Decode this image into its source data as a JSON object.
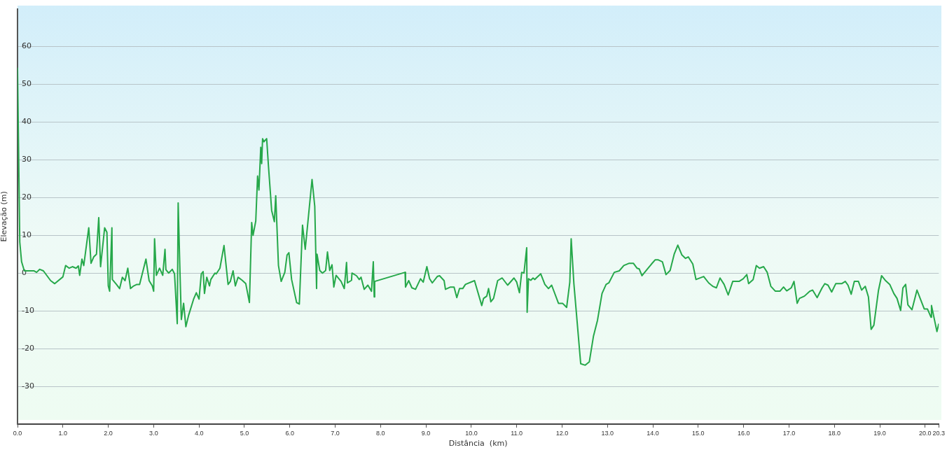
{
  "chart_data": {
    "type": "line",
    "xlabel": "Distância  (km)",
    "ylabel": "Elevação (m)",
    "color": "#26a84a",
    "marker": "none",
    "grid": "y",
    "xlim": [
      0,
      20.3
    ],
    "ylim": [
      -40,
      70
    ],
    "xticks": [
      {
        "value": 0,
        "label": "0.0"
      },
      {
        "value": 1,
        "label": "1.0"
      },
      {
        "value": 2,
        "label": "2.0"
      },
      {
        "value": 3,
        "label": "3.0"
      },
      {
        "value": 4,
        "label": "4.0"
      },
      {
        "value": 5,
        "label": "5.0"
      },
      {
        "value": 6,
        "label": "6.0"
      },
      {
        "value": 7,
        "label": "7.0"
      },
      {
        "value": 8,
        "label": "8.0"
      },
      {
        "value": 9,
        "label": "9.0"
      },
      {
        "value": 10,
        "label": "10.0"
      },
      {
        "value": 11,
        "label": "11.0"
      },
      {
        "value": 12,
        "label": "12.0"
      },
      {
        "value": 13,
        "label": "13.0"
      },
      {
        "value": 14,
        "label": "14.0"
      },
      {
        "value": 15,
        "label": "15.0"
      },
      {
        "value": 16,
        "label": "16.0"
      },
      {
        "value": 17,
        "label": "17.0"
      },
      {
        "value": 18,
        "label": "18.0"
      },
      {
        "value": 19,
        "label": "19.0"
      },
      {
        "value": 20,
        "label": "20.0"
      },
      {
        "value": 20.3,
        "label": "20.3"
      }
    ],
    "yticks": [
      -30,
      -20,
      -10,
      0,
      10,
      20,
      30,
      40,
      50,
      60
    ],
    "x": [
      0,
      0.05,
      0.09,
      0.15,
      0.36,
      0.42,
      0.49,
      0.57,
      0.73,
      0.82,
      1.0,
      1.06,
      1.14,
      1.21,
      1.29,
      1.34,
      1.37,
      1.42,
      1.46,
      1.57,
      1.62,
      1.68,
      1.74,
      1.79,
      1.83,
      1.92,
      1.97,
      2.0,
      2.03,
      2.08,
      2.09,
      2.18,
      2.25,
      2.31,
      2.37,
      2.43,
      2.49,
      2.56,
      2.63,
      2.69,
      2.83,
      2.9,
      2.97,
      3.0,
      3.02,
      3.06,
      3.13,
      3.2,
      3.25,
      3.27,
      3.33,
      3.41,
      3.46,
      3.52,
      3.54,
      3.58,
      3.61,
      3.66,
      3.71,
      3.77,
      3.88,
      3.94,
      4.0,
      4.05,
      4.09,
      4.12,
      4.17,
      4.23,
      4.26,
      4.35,
      4.38,
      4.46,
      4.55,
      4.64,
      4.69,
      4.75,
      4.8,
      4.86,
      4.95,
      5.03,
      5.11,
      5.16,
      5.19,
      5.25,
      5.29,
      5.32,
      5.36,
      5.38,
      5.4,
      5.43,
      5.49,
      5.53,
      5.6,
      5.66,
      5.69,
      5.75,
      5.81,
      5.89,
      5.94,
      5.98,
      6.04,
      6.15,
      6.21,
      6.28,
      6.34,
      6.49,
      6.55,
      6.59,
      6.6,
      6.66,
      6.72,
      6.79,
      6.83,
      6.88,
      6.93,
      6.97,
      7.02,
      7.13,
      7.2,
      7.25,
      7.27,
      7.36,
      7.37,
      7.47,
      7.53,
      7.57,
      7.64,
      7.72,
      7.8,
      7.84,
      7.86,
      7.87,
      8.54,
      8.55,
      8.62,
      8.69,
      8.77,
      8.88,
      8.94,
      9.02,
      9.08,
      9.14,
      9.25,
      9.3,
      9.4,
      9.43,
      9.54,
      9.62,
      9.68,
      9.74,
      9.81,
      9.87,
      10.07,
      10.23,
      10.27,
      10.34,
      10.38,
      10.43,
      10.49,
      10.58,
      10.68,
      10.8,
      10.94,
      11.0,
      11.06,
      11.11,
      11.16,
      11.22,
      11.23,
      11.26,
      11.31,
      11.36,
      11.4,
      11.43,
      11.53,
      11.62,
      11.7,
      11.77,
      11.92,
      12.01,
      12.1,
      12.17,
      12.2,
      12.26,
      12.41,
      12.51,
      12.6,
      12.69,
      12.78,
      12.88,
      12.97,
      13.03,
      13.15,
      13.26,
      13.36,
      13.48,
      13.57,
      13.65,
      13.7,
      13.76,
      13.88,
      13.97,
      14.05,
      14.12,
      14.21,
      14.29,
      14.38,
      14.47,
      14.55,
      14.64,
      14.72,
      14.78,
      14.88,
      14.95,
      15.12,
      15.23,
      15.32,
      15.4,
      15.48,
      15.57,
      15.66,
      15.76,
      15.9,
      15.99,
      16.07,
      16.11,
      16.21,
      16.28,
      16.35,
      16.44,
      16.52,
      16.6,
      16.7,
      16.8,
      16.88,
      16.95,
      17.05,
      17.11,
      17.18,
      17.23,
      17.34,
      17.46,
      17.52,
      17.62,
      17.73,
      17.79,
      17.86,
      17.94,
      18.03,
      18.16,
      18.24,
      18.3,
      18.37,
      18.44,
      18.53,
      18.6,
      18.68,
      18.75,
      18.81,
      18.87,
      18.97,
      19.04,
      19.12,
      19.22,
      19.31,
      19.38,
      19.46,
      19.51,
      19.57,
      19.62,
      19.71,
      19.82,
      19.89,
      19.98,
      20.05,
      20.13,
      20.14,
      20.26,
      20.3
    ],
    "values": [
      54.4,
      8.2,
      3,
      0.6,
      0.6,
      0.2,
      1,
      0.6,
      -2,
      -2.8,
      -1,
      2,
      1.3,
      1.7,
      1.3,
      1.9,
      -0.6,
      3.7,
      2,
      12,
      2.6,
      4.3,
      5,
      14.7,
      1.7,
      12,
      10.8,
      -3.4,
      -4.8,
      12,
      -1.7,
      -3,
      -4.1,
      -1.1,
      -2,
      1.3,
      -4.1,
      -3.4,
      -3,
      -3,
      3.7,
      -2,
      -3.4,
      -4.8,
      9.1,
      -0.6,
      1.3,
      -0.6,
      6.3,
      0.9,
      0,
      1,
      -0.2,
      -13.4,
      18.6,
      0.2,
      -12.3,
      -8,
      -14.2,
      -11.2,
      -6.9,
      -5.2,
      -6.9,
      -0.2,
      0.4,
      -5.4,
      -1.1,
      -3.4,
      -1.7,
      0,
      -0.2,
      1.3,
      7.3,
      -3,
      -2.2,
      0.6,
      -3.4,
      -1.1,
      -1.9,
      -2.8,
      -7.8,
      13.4,
      10,
      13.8,
      25.7,
      22,
      33.3,
      29,
      35.6,
      34.8,
      35.6,
      28.3,
      16.6,
      13.6,
      20.5,
      2,
      -2.2,
      0.2,
      4.8,
      5.4,
      -1.7,
      -7.8,
      -8.2,
      12.7,
      6.3,
      24.8,
      17.7,
      -4.1,
      5,
      0.7,
      0,
      0.7,
      5.6,
      0.7,
      2.2,
      -3.7,
      -0.6,
      -2.2,
      -4.1,
      2.8,
      -2.6,
      -1.9,
      0,
      -0.7,
      -1.7,
      -1.1,
      -4.3,
      -3.2,
      -4.8,
      3,
      -6.3,
      -2.2,
      0.2,
      -3.7,
      -2,
      -3.9,
      -4.3,
      -1.5,
      -2.4,
      1.7,
      -1.5,
      -2.6,
      -0.9,
      -0.7,
      -2,
      -4.3,
      -3.7,
      -3.7,
      -6.5,
      -4.1,
      -4.1,
      -3,
      -2,
      -8.6,
      -6.7,
      -6.1,
      -4.1,
      -7.6,
      -6.7,
      -2,
      -1.3,
      -3.2,
      -1.3,
      -2.4,
      -5.2,
      0.2,
      0,
      6.7,
      -10.4,
      -1.5,
      -1.9,
      -1.3,
      -1.7,
      -1.3,
      -0.2,
      -3,
      -4.1,
      -3.2,
      -8,
      -8,
      -9.1,
      -2.4,
      9.1,
      -2.8,
      -24,
      -24.4,
      -23.5,
      -16.8,
      -12.5,
      -5.4,
      -3,
      -2.6,
      0.2,
      0.6,
      2,
      2.6,
      2.6,
      1.3,
      1.1,
      -0.7,
      1.1,
      2.4,
      3.5,
      3.5,
      3,
      -0.4,
      0.7,
      5,
      7.4,
      4.8,
      3.9,
      4.3,
      2.4,
      -1.7,
      -0.9,
      -2.6,
      -3.5,
      -3.9,
      -1.3,
      -3,
      -5.8,
      -2.2,
      -2.2,
      -1.5,
      -0.4,
      -2.8,
      -1.7,
      2,
      1.3,
      1.7,
      0.2,
      -3.5,
      -4.8,
      -4.8,
      -3.7,
      -4.7,
      -3.9,
      -2.2,
      -8,
      -6.7,
      -6.1,
      -4.8,
      -4.5,
      -6.5,
      -3.9,
      -2.8,
      -3.2,
      -5,
      -2.8,
      -2.8,
      -2.2,
      -3.2,
      -5.6,
      -2.2,
      -2.2,
      -4.5,
      -3.5,
      -6.3,
      -14.9,
      -13.8,
      -4.7,
      -0.7,
      -1.9,
      -3,
      -5.4,
      -6.7,
      -9.9,
      -3.9,
      -3,
      -8.4,
      -9.7,
      -4.5,
      -6.7,
      -9.5,
      -9.5,
      -11.7,
      -8.6,
      -15.5,
      -13.4
    ]
  }
}
